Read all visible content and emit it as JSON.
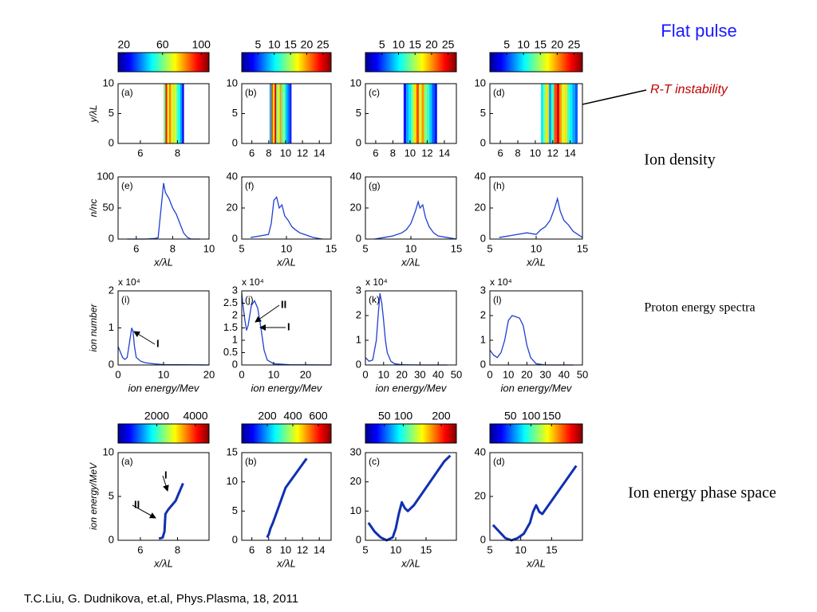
{
  "title": "Flat pulse",
  "rt_label": "R-T instability",
  "ion_density": "Ion density",
  "proton_spectra": "Proton energy spectra",
  "phase_space": "Ion energy phase space",
  "citation": "T.C.Liu, G. Dudnikova, et.al, Phys.Plasma, 18, 2011",
  "chart_data": [
    {
      "type": "heatmap",
      "label": "(a)",
      "ylabel": "y/λL",
      "xlim": [
        4.8,
        9.7
      ],
      "xticks": [
        6,
        8
      ],
      "ylim": [
        0,
        10
      ],
      "yticks": [
        0,
        5,
        10
      ],
      "colorbar": {
        "lim": [
          14,
          108
        ],
        "ticks": [
          20,
          60,
          100
        ]
      },
      "x": [
        7.3,
        7.4,
        7.5,
        7.6,
        7.7,
        7.8,
        7.9,
        8.0,
        8.1,
        8.2,
        8.3
      ],
      "values": [
        60,
        95,
        70,
        85,
        75,
        65,
        70,
        55,
        50,
        40,
        25
      ]
    },
    {
      "type": "heatmap",
      "label": "(b)",
      "xlim": [
        4.8,
        15.4
      ],
      "xticks": [
        6,
        8,
        10,
        12,
        14
      ],
      "ylim": [
        0,
        10
      ],
      "yticks": [
        0,
        5,
        10
      ],
      "colorbar": {
        "lim": [
          0,
          27.5
        ],
        "ticks": [
          5,
          10,
          15,
          20,
          25
        ]
      },
      "x": [
        8.2,
        8.4,
        8.6,
        8.8,
        9.0,
        9.2,
        9.4,
        9.6,
        9.8,
        10.0,
        10.2,
        10.4,
        10.6
      ],
      "values": [
        8,
        22,
        18,
        25,
        14,
        16,
        20,
        12,
        15,
        10,
        8,
        6,
        4
      ]
    },
    {
      "type": "heatmap",
      "label": "(c)",
      "xlim": [
        4.8,
        15.4
      ],
      "xticks": [
        6,
        8,
        10,
        12,
        14
      ],
      "ylim": [
        0,
        10
      ],
      "yticks": [
        0,
        5,
        10
      ],
      "colorbar": {
        "lim": [
          0,
          27.5
        ],
        "ticks": [
          5,
          10,
          15,
          20,
          25
        ]
      },
      "x": [
        9.4,
        9.7,
        10.0,
        10.3,
        10.6,
        10.9,
        11.2,
        11.5,
        11.8,
        12.1,
        12.4,
        12.7,
        13.0
      ],
      "values": [
        4,
        8,
        10,
        14,
        18,
        22,
        16,
        20,
        14,
        12,
        9,
        6,
        4
      ]
    },
    {
      "type": "heatmap",
      "label": "(d)",
      "xlim": [
        4.8,
        15.4
      ],
      "xticks": [
        6,
        8,
        10,
        12,
        14
      ],
      "ylim": [
        0,
        10
      ],
      "yticks": [
        0,
        5,
        10
      ],
      "colorbar": {
        "lim": [
          0,
          27.5
        ],
        "ticks": [
          5,
          10,
          15,
          20,
          25
        ]
      },
      "x": [
        10.8,
        11.1,
        11.4,
        11.7,
        12.0,
        12.3,
        12.6,
        12.9,
        13.2,
        13.5,
        13.8,
        14.1,
        14.4,
        14.7
      ],
      "values": [
        10,
        14,
        18,
        8,
        12,
        22,
        25,
        20,
        16,
        18,
        12,
        10,
        8,
        6
      ]
    },
    {
      "type": "line",
      "label": "(e)",
      "ylabel": "n/nc",
      "xlabel": "x/λL",
      "xlim": [
        5,
        10
      ],
      "xticks": [
        6,
        8,
        10
      ],
      "ylim": [
        0,
        100
      ],
      "yticks": [
        0,
        50,
        100
      ],
      "x": [
        5.5,
        6,
        6.5,
        7,
        7.2,
        7.4,
        7.5,
        7.6,
        7.8,
        8,
        8.2,
        8.4,
        8.6,
        8.8,
        9,
        9.5
      ],
      "values": [
        0,
        0,
        0,
        1,
        2,
        60,
        90,
        75,
        65,
        50,
        40,
        25,
        10,
        3,
        0,
        0
      ]
    },
    {
      "type": "line",
      "label": "(f)",
      "xlabel": "x/λL",
      "xlim": [
        5,
        15
      ],
      "xticks": [
        5,
        10,
        15
      ],
      "ylim": [
        0,
        40
      ],
      "yticks": [
        0,
        20,
        40
      ],
      "x": [
        6,
        7,
        8,
        8.3,
        8.6,
        8.9,
        9.2,
        9.5,
        9.8,
        10.2,
        10.6,
        11,
        11.5,
        12,
        12.5,
        13,
        14
      ],
      "values": [
        1,
        2,
        3,
        10,
        25,
        27,
        20,
        22,
        15,
        12,
        8,
        6,
        4,
        3,
        2,
        1,
        0
      ]
    },
    {
      "type": "line",
      "label": "(g)",
      "xlabel": "x/λL",
      "xlim": [
        5,
        15
      ],
      "xticks": [
        5,
        10,
        15
      ],
      "ylim": [
        0,
        40
      ],
      "yticks": [
        0,
        20,
        40
      ],
      "x": [
        6,
        7,
        8,
        9,
        9.5,
        10,
        10.5,
        10.8,
        11,
        11.3,
        11.6,
        12,
        12.5,
        13,
        14,
        15
      ],
      "values": [
        0,
        1,
        2,
        4,
        6,
        10,
        18,
        24,
        20,
        22,
        14,
        8,
        4,
        2,
        1,
        0
      ]
    },
    {
      "type": "line",
      "label": "(h)",
      "xlabel": "x/λL",
      "xlim": [
        5,
        15
      ],
      "xticks": [
        5,
        10,
        15
      ],
      "ylim": [
        0,
        40
      ],
      "yticks": [
        0,
        20,
        40
      ],
      "x": [
        6,
        7,
        8,
        9,
        10,
        10.5,
        11,
        11.5,
        12,
        12.3,
        12.6,
        13,
        13.5,
        14,
        14.5,
        15
      ],
      "values": [
        1,
        2,
        3,
        4,
        3,
        6,
        8,
        12,
        20,
        26,
        18,
        12,
        9,
        5,
        3,
        1
      ]
    },
    {
      "type": "line",
      "label": "(i)",
      "ylabel": "ion number",
      "xlabel": "ion energy/Mev",
      "multiplier": "x 10⁴",
      "annotations": [
        "I"
      ],
      "xlim": [
        0,
        20
      ],
      "xticks": [
        0,
        10,
        20
      ],
      "ylim": [
        0,
        2
      ],
      "yticks": [
        0,
        1,
        2
      ],
      "x": [
        0,
        0.5,
        1,
        1.5,
        2,
        2.5,
        3,
        3.3,
        3.6,
        4,
        5,
        6,
        8,
        10,
        20
      ],
      "values": [
        0.5,
        0.35,
        0.2,
        0.15,
        0.2,
        0.6,
        1.0,
        0.9,
        0.5,
        0.2,
        0.1,
        0.06,
        0.03,
        0.01,
        0
      ]
    },
    {
      "type": "line",
      "label": "(j)",
      "xlabel": "ion energy/Mev",
      "multiplier": "x 10⁴",
      "annotations": [
        "II",
        "I"
      ],
      "xlim": [
        0,
        28
      ],
      "xticks": [
        0,
        10,
        20
      ],
      "ylim": [
        0,
        3
      ],
      "yticks": [
        0,
        0.5,
        1,
        1.5,
        2,
        2.5,
        3
      ],
      "x": [
        0,
        0.5,
        1,
        1.5,
        2,
        3,
        4,
        5,
        6,
        7,
        8,
        10,
        15,
        28
      ],
      "values": [
        2.9,
        2.3,
        1.8,
        1.4,
        1.6,
        2.4,
        2.6,
        2.3,
        1.5,
        0.6,
        0.2,
        0.05,
        0.01,
        0
      ]
    },
    {
      "type": "line",
      "label": "(k)",
      "xlabel": "ion energy/Mev",
      "multiplier": "x 10⁴",
      "xlim": [
        0,
        50
      ],
      "xticks": [
        0,
        10,
        20,
        30,
        40,
        50
      ],
      "ylim": [
        0,
        3
      ],
      "yticks": [
        0,
        1,
        2,
        3
      ],
      "x": [
        0,
        2,
        4,
        6,
        7,
        8,
        9,
        10,
        11,
        12,
        14,
        16,
        20,
        30,
        45
      ],
      "values": [
        0.3,
        0.15,
        0.2,
        1.0,
        2.0,
        2.9,
        2.5,
        1.8,
        1.0,
        0.5,
        0.15,
        0.05,
        0.01,
        0,
        0
      ]
    },
    {
      "type": "line",
      "label": "(l)",
      "xlabel": "ion energy/Mev",
      "multiplier": "x 10⁴",
      "xlim": [
        0,
        50
      ],
      "xticks": [
        0,
        10,
        20,
        30,
        40,
        50
      ],
      "ylim": [
        0,
        3
      ],
      "yticks": [
        0,
        1,
        2,
        3
      ],
      "x": [
        0,
        2,
        4,
        6,
        8,
        10,
        12,
        14,
        16,
        18,
        20,
        22,
        25,
        30,
        45
      ],
      "values": [
        0.6,
        0.4,
        0.3,
        0.5,
        1.0,
        1.8,
        2.0,
        1.95,
        1.9,
        1.6,
        0.8,
        0.3,
        0.05,
        0,
        0
      ]
    },
    {
      "type": "phase",
      "label": "(a)",
      "ylabel": "ion energy/MeV",
      "xlabel": "x/λL",
      "annotations": [
        "I",
        "II"
      ],
      "xlim": [
        4.8,
        9.7
      ],
      "xticks": [
        6,
        8
      ],
      "ylim": [
        0,
        10
      ],
      "yticks": [
        0,
        5,
        10
      ],
      "colorbar": {
        "lim": [
          0,
          4700
        ],
        "ticks": [
          2000,
          4000
        ]
      },
      "x": [
        7.0,
        7.2,
        7.3,
        7.35,
        7.5,
        7.7,
        7.9,
        8.1,
        8.3
      ],
      "values": [
        0.2,
        0.3,
        1,
        3,
        3.5,
        4,
        4.5,
        5.5,
        6.5
      ]
    },
    {
      "type": "phase",
      "label": "(b)",
      "xlabel": "x/λL",
      "xlim": [
        4.8,
        15.4
      ],
      "xticks": [
        6,
        8,
        10,
        12,
        14
      ],
      "ylim": [
        0,
        15
      ],
      "yticks": [
        0,
        5,
        10,
        15
      ],
      "colorbar": {
        "lim": [
          0,
          700
        ],
        "ticks": [
          200,
          400,
          600
        ]
      },
      "x": [
        7.8,
        8,
        8.2,
        8.5,
        9,
        9.5,
        10,
        10.5,
        11,
        11.5,
        12,
        12.5
      ],
      "values": [
        0.5,
        1,
        2,
        3,
        5,
        7,
        9,
        10,
        11,
        12,
        13,
        14
      ]
    },
    {
      "type": "phase",
      "label": "(c)",
      "xlabel": "x/λL",
      "xlim": [
        5,
        20
      ],
      "xticks": [
        5,
        10,
        15
      ],
      "ylim": [
        0,
        30
      ],
      "yticks": [
        0,
        10,
        20,
        30
      ],
      "colorbar": {
        "lim": [
          0,
          240
        ],
        "ticks": [
          50,
          100,
          200
        ]
      },
      "x": [
        5.5,
        6.5,
        7.5,
        8.5,
        9.5,
        10,
        10.5,
        11,
        11.5,
        12,
        13,
        14,
        15,
        16,
        17,
        18,
        19
      ],
      "values": [
        6,
        3,
        1,
        0,
        1,
        4,
        9,
        13,
        11,
        10,
        12,
        15,
        18,
        21,
        24,
        27,
        29
      ]
    },
    {
      "type": "phase",
      "label": "(d)",
      "xlabel": "x/λL",
      "xlim": [
        5,
        20
      ],
      "xticks": [
        5,
        10,
        15
      ],
      "ylim": [
        0,
        40
      ],
      "yticks": [
        0,
        20,
        40
      ],
      "colorbar": {
        "lim": [
          0,
          225
        ],
        "ticks": [
          50,
          100,
          150
        ]
      },
      "x": [
        5.5,
        6.5,
        7.5,
        8.5,
        9.5,
        10.5,
        11.5,
        12,
        12.5,
        13,
        13.5,
        14,
        15,
        16,
        17,
        18,
        19
      ],
      "values": [
        7,
        4,
        1,
        0,
        1,
        3,
        8,
        13,
        16,
        13,
        12,
        14,
        18,
        22,
        26,
        30,
        34
      ]
    }
  ]
}
